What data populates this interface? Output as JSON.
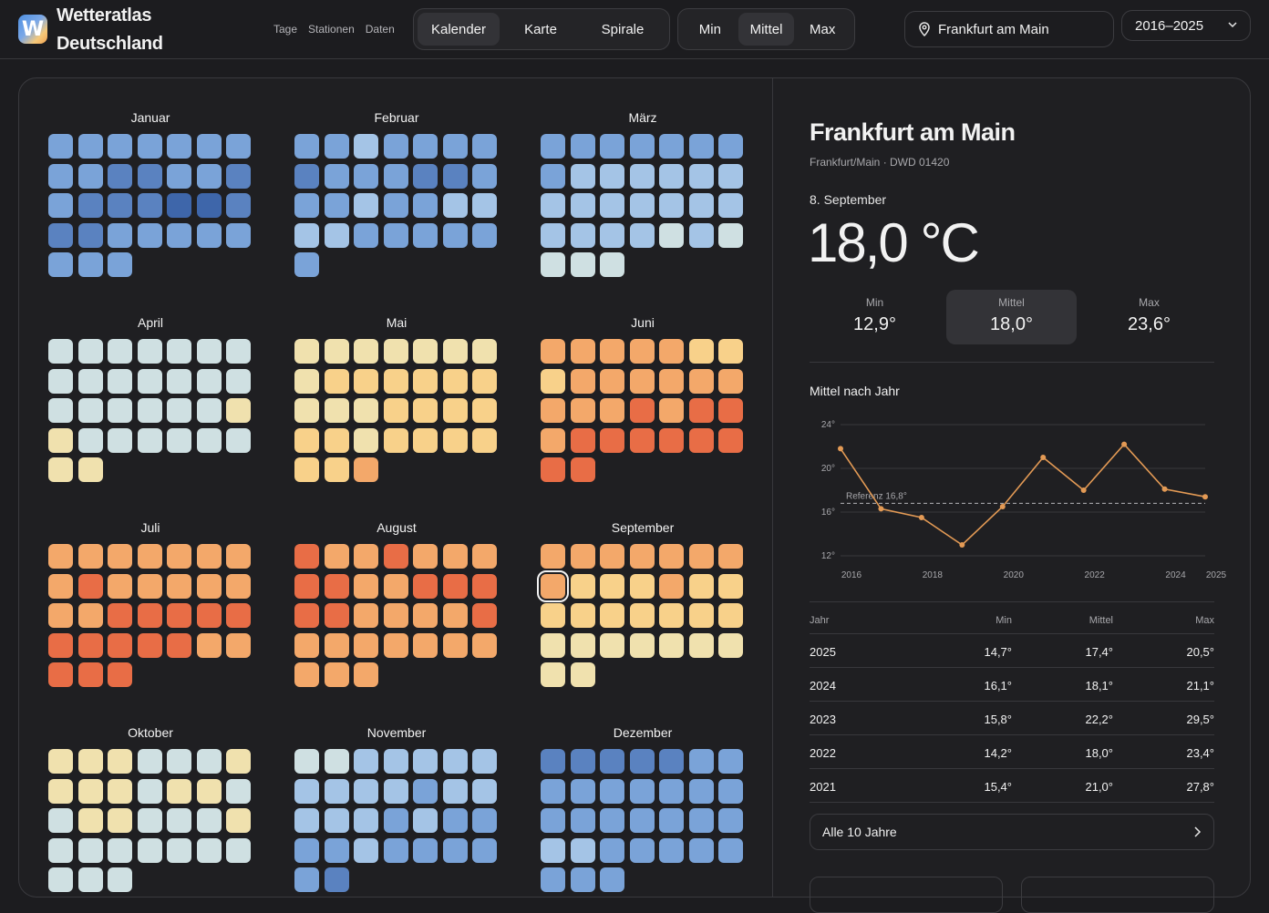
{
  "app": {
    "name": "Wetteratlas Deutschland",
    "logo_letter": "W"
  },
  "nav": {
    "links": [
      "Tage",
      "Stationen",
      "Daten"
    ]
  },
  "view_toggle": {
    "options": [
      "Kalender",
      "Karte",
      "Spirale"
    ],
    "active": "Kalender"
  },
  "stat_toggle": {
    "options": [
      "Min",
      "Mittel",
      "Max"
    ],
    "active": "Mittel"
  },
  "location": {
    "label": "Frankfurt am Main",
    "icon": "pin-icon"
  },
  "year_range": {
    "label": "2016–2025",
    "icon": "chevron-down-icon"
  },
  "palette": {
    "1": "#3e66aa",
    "2": "#5a82c0",
    "3": "#7aa3d8",
    "4": "#a4c4e6",
    "5": "#cfe0e2",
    "6": "#f0e1ae",
    "7": "#f8d18a",
    "8": "#f3a86a",
    "9": "#e86d46"
  },
  "calendar": {
    "months": [
      {
        "name": "Januar",
        "levels": [
          3,
          3,
          3,
          3,
          3,
          3,
          3,
          3,
          3,
          2,
          2,
          3,
          3,
          2,
          3,
          2,
          2,
          2,
          1,
          1,
          2,
          2,
          2,
          3,
          3,
          3,
          3,
          3,
          3,
          3,
          3
        ]
      },
      {
        "name": "Februar",
        "levels": [
          3,
          3,
          4,
          3,
          3,
          3,
          3,
          2,
          3,
          3,
          3,
          2,
          2,
          3,
          3,
          3,
          4,
          3,
          3,
          4,
          4,
          4,
          4,
          3,
          3,
          3,
          3,
          3,
          3
        ]
      },
      {
        "name": "März",
        "levels": [
          3,
          3,
          3,
          3,
          3,
          3,
          3,
          3,
          4,
          4,
          4,
          4,
          4,
          4,
          4,
          4,
          4,
          4,
          4,
          4,
          4,
          4,
          4,
          4,
          4,
          5,
          4,
          5,
          5,
          5,
          5
        ]
      },
      {
        "name": "April",
        "levels": [
          5,
          5,
          5,
          5,
          5,
          5,
          5,
          5,
          5,
          5,
          5,
          5,
          5,
          5,
          5,
          5,
          5,
          5,
          5,
          5,
          6,
          6,
          5,
          5,
          5,
          5,
          5,
          5,
          6,
          6
        ]
      },
      {
        "name": "Mai",
        "levels": [
          6,
          6,
          6,
          6,
          6,
          6,
          6,
          6,
          7,
          7,
          7,
          7,
          7,
          7,
          6,
          6,
          6,
          7,
          7,
          7,
          7,
          7,
          7,
          6,
          7,
          7,
          7,
          7,
          7,
          7,
          8
        ]
      },
      {
        "name": "Juni",
        "levels": [
          8,
          8,
          8,
          8,
          8,
          7,
          7,
          7,
          8,
          8,
          8,
          8,
          8,
          8,
          8,
          8,
          8,
          9,
          8,
          9,
          9,
          8,
          9,
          9,
          9,
          9,
          9,
          9,
          9,
          9
        ]
      },
      {
        "name": "Juli",
        "levels": [
          8,
          8,
          8,
          8,
          8,
          8,
          8,
          8,
          9,
          8,
          8,
          8,
          8,
          8,
          8,
          8,
          9,
          9,
          9,
          9,
          9,
          9,
          9,
          9,
          9,
          9,
          8,
          8,
          9,
          9,
          9
        ]
      },
      {
        "name": "August",
        "levels": [
          9,
          8,
          8,
          9,
          8,
          8,
          8,
          9,
          9,
          8,
          8,
          9,
          9,
          9,
          9,
          9,
          8,
          8,
          8,
          8,
          9,
          8,
          8,
          8,
          8,
          8,
          8,
          8,
          8,
          8,
          8
        ]
      },
      {
        "name": "September",
        "levels": [
          8,
          8,
          8,
          8,
          8,
          8,
          8,
          8,
          7,
          7,
          7,
          8,
          7,
          7,
          7,
          7,
          7,
          7,
          7,
          7,
          7,
          6,
          6,
          6,
          6,
          6,
          6,
          6,
          6,
          6
        ],
        "selected_index": 7
      },
      {
        "name": "Oktober",
        "levels": [
          6,
          6,
          6,
          5,
          5,
          5,
          6,
          6,
          6,
          6,
          5,
          6,
          6,
          5,
          5,
          6,
          6,
          5,
          5,
          5,
          6,
          5,
          5,
          5,
          5,
          5,
          5,
          5,
          5,
          5,
          5
        ]
      },
      {
        "name": "November",
        "levels": [
          5,
          5,
          4,
          4,
          4,
          4,
          4,
          4,
          4,
          4,
          4,
          3,
          4,
          4,
          4,
          4,
          4,
          3,
          4,
          3,
          3,
          3,
          3,
          4,
          3,
          3,
          3,
          3,
          3,
          2
        ]
      },
      {
        "name": "Dezember",
        "levels": [
          2,
          2,
          2,
          2,
          2,
          3,
          3,
          3,
          3,
          3,
          3,
          3,
          3,
          3,
          3,
          3,
          3,
          3,
          3,
          3,
          3,
          4,
          4,
          3,
          3,
          3,
          3,
          3,
          3,
          3,
          3
        ]
      }
    ]
  },
  "detail": {
    "city": "Frankfurt am Main",
    "station": "Frankfurt/Main · DWD 01420",
    "date": "8. September",
    "temperature": "18,0 °C",
    "stats": [
      {
        "label": "Min",
        "value": "12,9°"
      },
      {
        "label": "Mittel",
        "value": "18,0°"
      },
      {
        "label": "Max",
        "value": "23,6°"
      }
    ],
    "active_stat": "Mittel"
  },
  "chart_data": {
    "type": "line",
    "title": "Mittel nach Jahr",
    "x": [
      2016,
      2017,
      2018,
      2019,
      2020,
      2021,
      2022,
      2023,
      2024,
      2025
    ],
    "series": [
      {
        "values": [
          21.8,
          16.3,
          15.5,
          13.0,
          16.5,
          21.0,
          18.0,
          22.2,
          18.1,
          17.4
        ]
      }
    ],
    "ylim": [
      12,
      24
    ],
    "y_ticks": [
      "24°",
      "20°",
      "16°",
      "12°"
    ],
    "y_tick_values": [
      24,
      20,
      16,
      12
    ],
    "x_ticks": [
      "2016",
      "2018",
      "2020",
      "2022",
      "2024",
      "2025"
    ],
    "x_tick_values": [
      2016,
      2018,
      2020,
      2022,
      2024,
      2025
    ],
    "reference": {
      "label": "Referenz 16,8°",
      "value": 16.8
    },
    "line_color": "#e39a55",
    "grid": true
  },
  "table": {
    "headers": [
      "Jahr",
      "Min",
      "Mittel",
      "Max"
    ],
    "rows": [
      [
        "2025",
        "14,7°",
        "17,4°",
        "20,5°"
      ],
      [
        "2024",
        "16,1°",
        "18,1°",
        "21,1°"
      ],
      [
        "2023",
        "15,8°",
        "22,2°",
        "29,5°"
      ],
      [
        "2022",
        "14,2°",
        "18,0°",
        "23,4°"
      ],
      [
        "2021",
        "15,4°",
        "21,0°",
        "27,8°"
      ]
    ]
  },
  "all_years_button": {
    "label": "Alle 10 Jahre",
    "icon": "chevron-right-icon"
  }
}
